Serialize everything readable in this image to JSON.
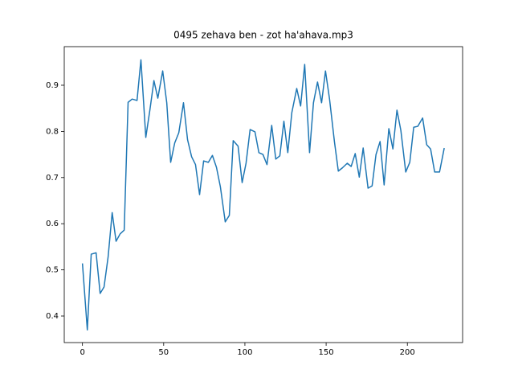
{
  "chart_data": {
    "type": "line",
    "title": "0495 zehava ben - zot ha'ahava.mp3",
    "x": [
      0,
      3.0,
      5.4,
      8.4,
      10.9,
      13.3,
      15.8,
      18.3,
      20.7,
      23.2,
      25.7,
      28.1,
      30.6,
      33.6,
      36.0,
      39.0,
      41.5,
      44.0,
      46.4,
      49.4,
      51.9,
      54.3,
      56.8,
      59.3,
      62.2,
      64.7,
      67.2,
      69.6,
      72.1,
      74.6,
      77.5,
      80.0,
      82.5,
      84.9,
      87.9,
      90.4,
      92.8,
      95.8,
      98.3,
      100.7,
      103.2,
      106.2,
      108.6,
      111.1,
      113.6,
      116.5,
      119.0,
      121.5,
      124.0,
      126.4,
      128.9,
      131.9,
      134.3,
      136.8,
      139.8,
      142.2,
      144.7,
      147.2,
      149.6,
      152.1,
      155.1,
      157.5,
      160.0,
      163.0,
      165.4,
      167.9,
      170.4,
      172.8,
      175.8,
      178.3,
      180.7,
      183.2,
      185.7,
      188.6,
      191.1,
      193.6,
      196.0,
      199.0,
      201.5,
      203.9,
      206.4,
      209.4,
      211.9,
      214.3,
      216.8,
      219.8,
      222.7
    ],
    "series": [
      {
        "color": "#1f77b4",
        "values": [
          0.514,
          0.37,
          0.534,
          0.537,
          0.449,
          0.463,
          0.528,
          0.624,
          0.562,
          0.578,
          0.586,
          0.863,
          0.87,
          0.867,
          0.955,
          0.787,
          0.846,
          0.91,
          0.872,
          0.931,
          0.862,
          0.733,
          0.775,
          0.797,
          0.862,
          0.782,
          0.745,
          0.728,
          0.663,
          0.736,
          0.733,
          0.748,
          0.722,
          0.68,
          0.604,
          0.618,
          0.78,
          0.768,
          0.689,
          0.731,
          0.804,
          0.799,
          0.754,
          0.75,
          0.728,
          0.813,
          0.74,
          0.747,
          0.822,
          0.754,
          0.841,
          0.893,
          0.855,
          0.945,
          0.754,
          0.862,
          0.907,
          0.862,
          0.931,
          0.87,
          0.778,
          0.714,
          0.721,
          0.731,
          0.724,
          0.752,
          0.701,
          0.764,
          0.677,
          0.682,
          0.75,
          0.778,
          0.684,
          0.806,
          0.762,
          0.846,
          0.802,
          0.712,
          0.733,
          0.809,
          0.811,
          0.829,
          0.771,
          0.762,
          0.712,
          0.712,
          0.764
        ]
      }
    ],
    "xlim": [
      -11.2,
      234
    ],
    "ylim": [
      0.3425,
      0.9836
    ],
    "xticks": [
      0,
      50,
      100,
      150,
      200
    ],
    "yticks": [
      0.4,
      0.5,
      0.6,
      0.7,
      0.8,
      0.9
    ]
  }
}
